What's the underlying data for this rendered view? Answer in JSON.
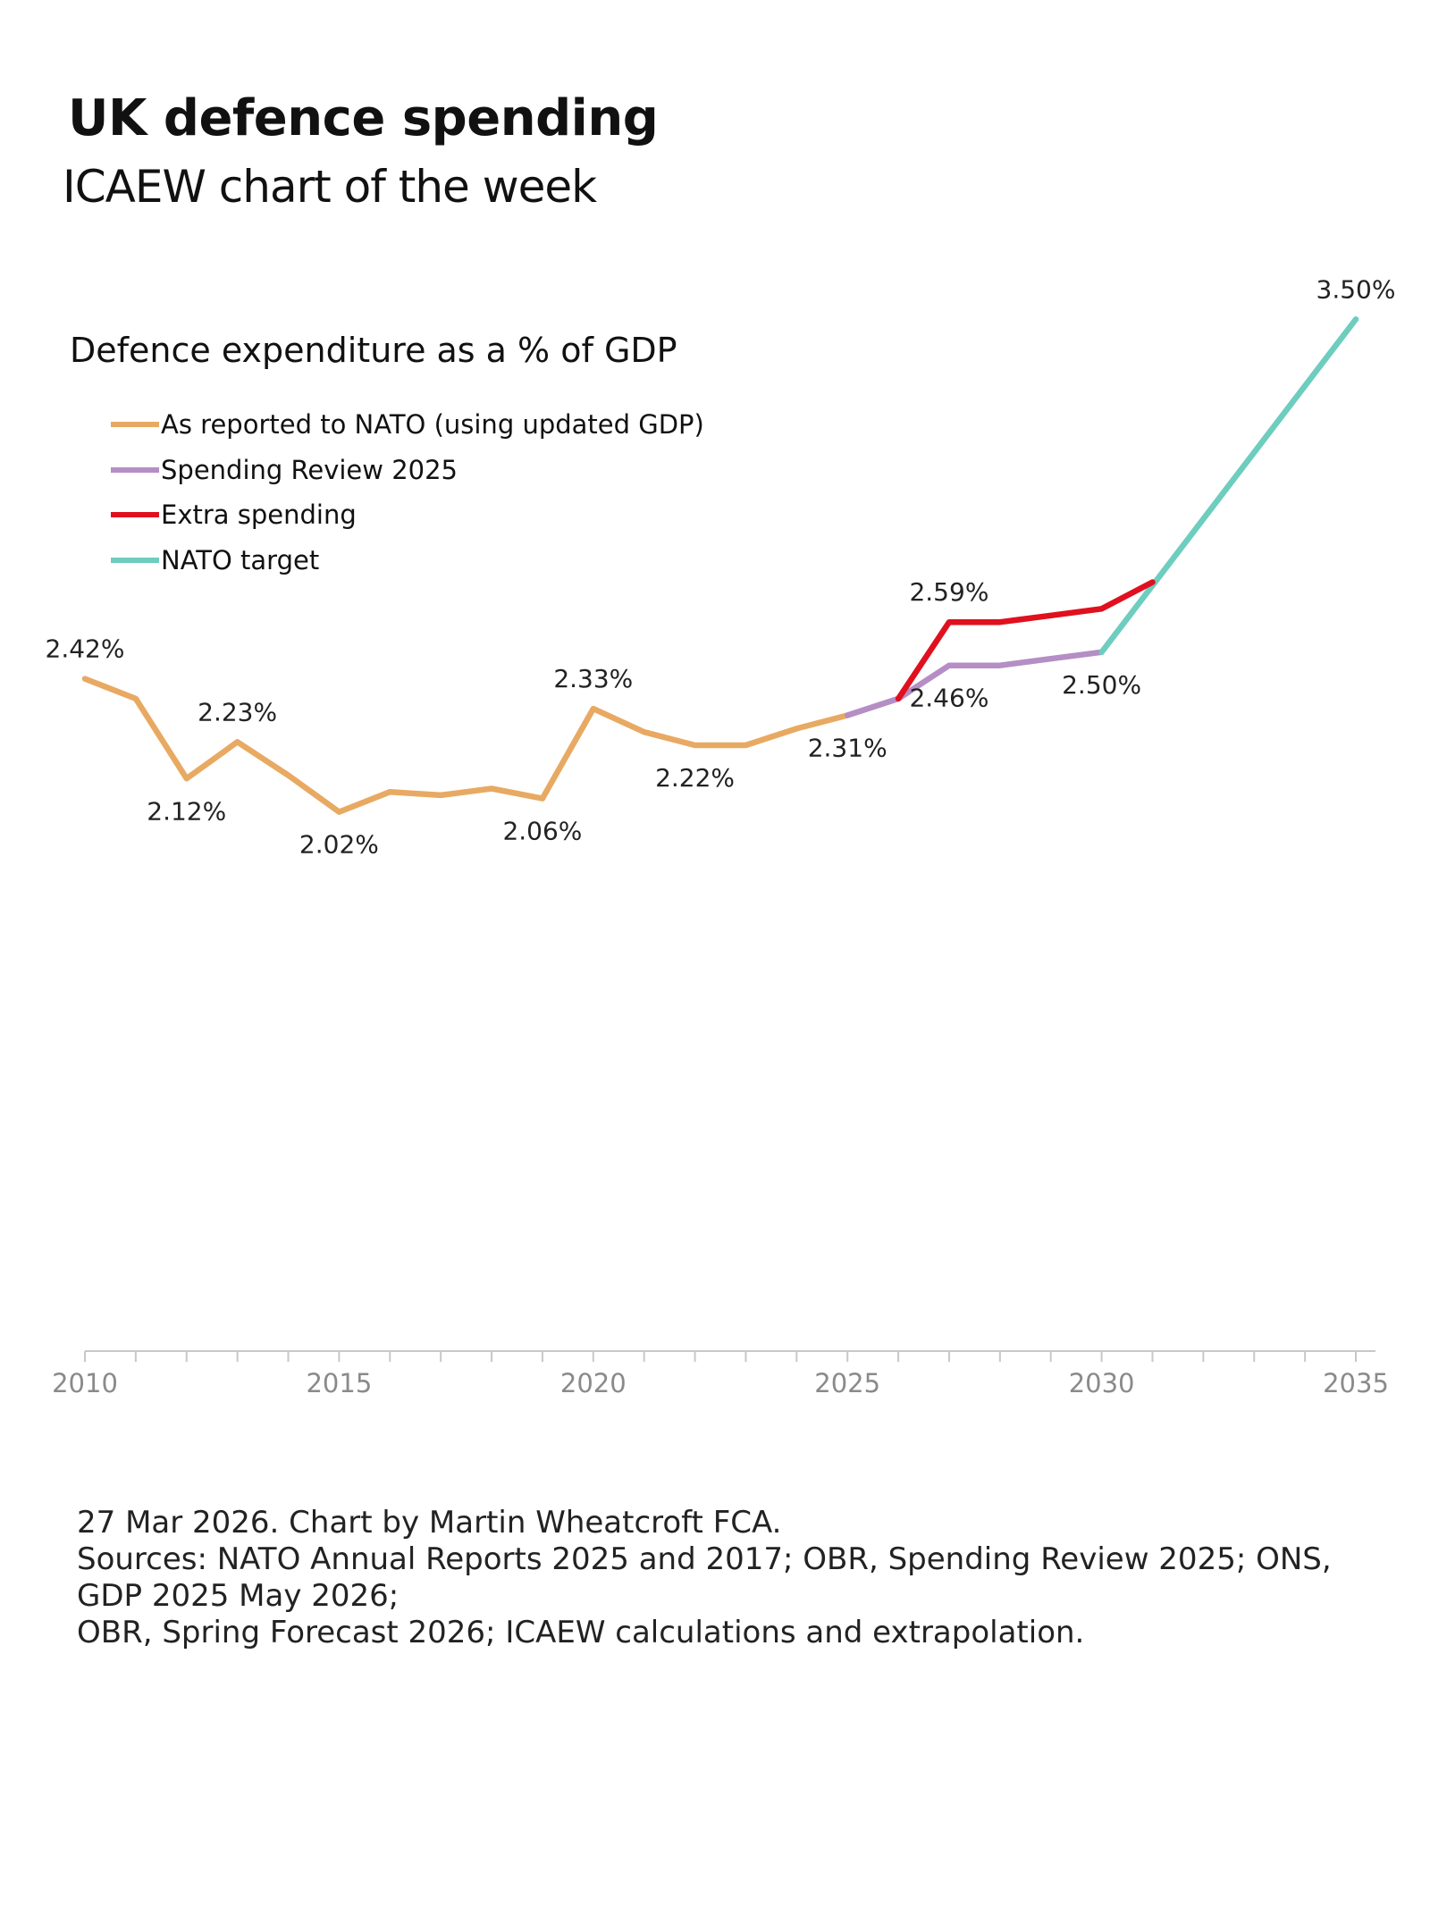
{
  "header": {
    "title": "UK defence spending",
    "subtitle": "ICAEW chart of the week"
  },
  "footer": {
    "line1": "27 Mar 2026.  Chart by Martin Wheatcroft FCA.",
    "line2": "Sources: NATO Annual Reports 2025 and 2017; OBR, Spending Review 2025; ONS, GDP 2025 May 2026;",
    "line3": "OBR, Spring Forecast 2026; ICAEW calculations and extrapolation."
  },
  "chart_data": {
    "type": "line",
    "title": "Defence expenditure as a % of GDP",
    "xlabel": "",
    "ylabel": "",
    "xlim": [
      2010,
      2035
    ],
    "ylim": [
      0.4,
      3.6
    ],
    "x_ticks": [
      "2010",
      "2015",
      "2020",
      "2025",
      "2030",
      "2035"
    ],
    "grid": false,
    "legend_position": "top-left",
    "series": [
      {
        "name": "As reported to NATO (using updated GDP)",
        "color": "#E8A962",
        "points": [
          [
            2010,
            2.42
          ],
          [
            2011,
            2.36
          ],
          [
            2012,
            2.12
          ],
          [
            2013,
            2.23
          ],
          [
            2014,
            2.13
          ],
          [
            2015,
            2.02
          ],
          [
            2016,
            2.08
          ],
          [
            2017,
            2.07
          ],
          [
            2018,
            2.09
          ],
          [
            2019,
            2.06
          ],
          [
            2020,
            2.33
          ],
          [
            2021,
            2.26
          ],
          [
            2022,
            2.22
          ],
          [
            2023,
            2.22
          ],
          [
            2024,
            2.27
          ],
          [
            2025,
            2.31
          ]
        ]
      },
      {
        "name": "Spending Review 2025",
        "color": "#B48EC4",
        "points": [
          [
            2025,
            2.31
          ],
          [
            2026,
            2.36
          ],
          [
            2027,
            2.46
          ],
          [
            2028,
            2.46
          ],
          [
            2029,
            2.48
          ],
          [
            2030,
            2.5
          ]
        ]
      },
      {
        "name": "Extra spending",
        "color": "#E0101E",
        "points": [
          [
            2026,
            2.36
          ],
          [
            2027,
            2.59
          ],
          [
            2028,
            2.59
          ],
          [
            2029,
            2.61
          ],
          [
            2030,
            2.63
          ],
          [
            2031,
            2.71
          ]
        ]
      },
      {
        "name": "NATO target",
        "color": "#6DCDBE",
        "points": [
          [
            2030,
            2.5
          ],
          [
            2035,
            3.5
          ]
        ]
      }
    ],
    "data_labels": [
      {
        "x": 2010,
        "y": 2.42,
        "text": "2.42%",
        "pos": "above"
      },
      {
        "x": 2012,
        "y": 2.12,
        "text": "2.12%",
        "pos": "below"
      },
      {
        "x": 2013,
        "y": 2.23,
        "text": "2.23%",
        "pos": "above"
      },
      {
        "x": 2015,
        "y": 2.02,
        "text": "2.02%",
        "pos": "below"
      },
      {
        "x": 2019,
        "y": 2.06,
        "text": "2.06%",
        "pos": "below"
      },
      {
        "x": 2020,
        "y": 2.33,
        "text": "2.33%",
        "pos": "above"
      },
      {
        "x": 2022,
        "y": 2.22,
        "text": "2.22%",
        "pos": "below"
      },
      {
        "x": 2025,
        "y": 2.31,
        "text": "2.31%",
        "pos": "below"
      },
      {
        "x": 2027,
        "y": 2.59,
        "text": "2.59%",
        "pos": "above"
      },
      {
        "x": 2027,
        "y": 2.46,
        "text": "2.46%",
        "pos": "below"
      },
      {
        "x": 2030,
        "y": 2.5,
        "text": "2.50%",
        "pos": "below"
      },
      {
        "x": 2035,
        "y": 3.5,
        "text": "3.50%",
        "pos": "above"
      }
    ]
  }
}
